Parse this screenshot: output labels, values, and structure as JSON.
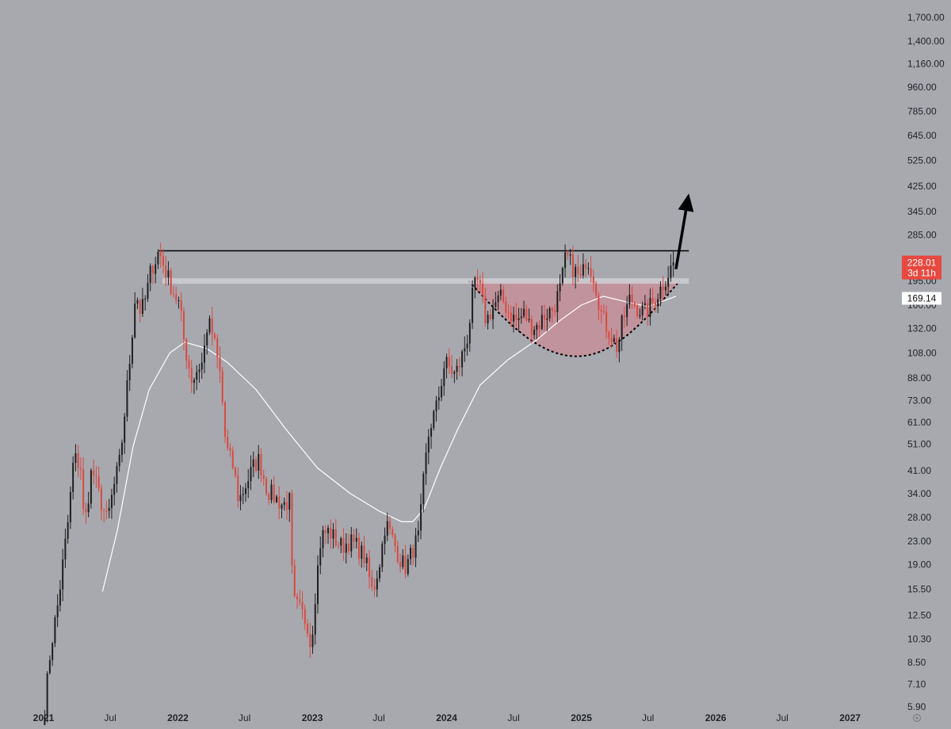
{
  "chart_data": {
    "type": "candlestick",
    "scale": "log",
    "grid": false,
    "ylim": [
      5.9,
      1700.0
    ],
    "xlim": [
      "2021-01-01",
      "2027-03-01"
    ],
    "y_ticks": [
      "1,700.00",
      "1,400.00",
      "1,160.00",
      "960.00",
      "785.00",
      "645.00",
      "525.00",
      "425.00",
      "345.00",
      "285.00",
      "195.00",
      "160.00",
      "132.00",
      "108.00",
      "88.00",
      "73.00",
      "61.00",
      "51.00",
      "41.00",
      "34.00",
      "28.00",
      "23.00",
      "19.00",
      "15.50",
      "12.50",
      "10.30",
      "8.50",
      "7.10",
      "5.90"
    ],
    "y_tick_values": [
      1700,
      1400,
      1160,
      960,
      785,
      645,
      525,
      425,
      345,
      285,
      195,
      160,
      132,
      108,
      88,
      73,
      61,
      51,
      41,
      34,
      28,
      23,
      19,
      15.5,
      12.5,
      10.3,
      8.5,
      7.1,
      5.9
    ],
    "x_ticks": [
      {
        "label": "2021",
        "date": "2021-01-01",
        "year": true
      },
      {
        "label": "Jul",
        "date": "2021-07-01",
        "year": false
      },
      {
        "label": "2022",
        "date": "2022-01-01",
        "year": true
      },
      {
        "label": "Jul",
        "date": "2022-07-01",
        "year": false
      },
      {
        "label": "2023",
        "date": "2023-01-01",
        "year": true
      },
      {
        "label": "Jul",
        "date": "2023-07-01",
        "year": false
      },
      {
        "label": "2024",
        "date": "2024-01-01",
        "year": true
      },
      {
        "label": "Jul",
        "date": "2024-07-01",
        "year": false
      },
      {
        "label": "2025",
        "date": "2025-01-01",
        "year": true
      },
      {
        "label": "Jul",
        "date": "2025-07-01",
        "year": false
      },
      {
        "label": "2026",
        "date": "2026-01-01",
        "year": true
      },
      {
        "label": "Jul",
        "date": "2026-07-01",
        "year": false
      },
      {
        "label": "2027",
        "date": "2027-01-01",
        "year": true
      }
    ],
    "price_path": [
      [
        "2021-01-04",
        5.9
      ],
      [
        "2021-01-20",
        9.5
      ],
      [
        "2021-02-10",
        14
      ],
      [
        "2021-02-24",
        20
      ],
      [
        "2021-03-10",
        28
      ],
      [
        "2021-03-24",
        46
      ],
      [
        "2021-04-14",
        42
      ],
      [
        "2021-04-21",
        25
      ],
      [
        "2021-05-12",
        42
      ],
      [
        "2021-06-02",
        33
      ],
      [
        "2021-06-23",
        27
      ],
      [
        "2021-07-07",
        34
      ],
      [
        "2021-07-28",
        45
      ],
      [
        "2021-08-11",
        70
      ],
      [
        "2021-08-25",
        108
      ],
      [
        "2021-09-08",
        180
      ],
      [
        "2021-09-22",
        150
      ],
      [
        "2021-10-06",
        170
      ],
      [
        "2021-10-20",
        215
      ],
      [
        "2021-11-03",
        235
      ],
      [
        "2021-11-10",
        250
      ],
      [
        "2021-11-24",
        220
      ],
      [
        "2021-12-15",
        185
      ],
      [
        "2022-01-05",
        160
      ],
      [
        "2022-01-19",
        115
      ],
      [
        "2022-02-09",
        85
      ],
      [
        "2022-02-23",
        95
      ],
      [
        "2022-03-09",
        100
      ],
      [
        "2022-03-23",
        140
      ],
      [
        "2022-04-06",
        125
      ],
      [
        "2022-04-27",
        88
      ],
      [
        "2022-05-11",
        50
      ],
      [
        "2022-06-01",
        42
      ],
      [
        "2022-06-15",
        32
      ],
      [
        "2022-07-06",
        37
      ],
      [
        "2022-07-27",
        43
      ],
      [
        "2022-08-10",
        45
      ],
      [
        "2022-08-31",
        35
      ],
      [
        "2022-09-21",
        33
      ],
      [
        "2022-10-12",
        31
      ],
      [
        "2022-11-02",
        32
      ],
      [
        "2022-11-09",
        14
      ],
      [
        "2022-11-30",
        13
      ],
      [
        "2022-12-21",
        11.5
      ],
      [
        "2022-12-28",
        9.5
      ],
      [
        "2023-01-11",
        16
      ],
      [
        "2023-01-25",
        24
      ],
      [
        "2023-02-15",
        25
      ],
      [
        "2023-03-08",
        23
      ],
      [
        "2023-03-22",
        22
      ],
      [
        "2023-04-12",
        23
      ],
      [
        "2023-05-03",
        22
      ],
      [
        "2023-05-24",
        20
      ],
      [
        "2023-06-14",
        15
      ],
      [
        "2023-07-05",
        20
      ],
      [
        "2023-07-19",
        27
      ],
      [
        "2023-08-09",
        23
      ],
      [
        "2023-08-30",
        19.5
      ],
      [
        "2023-09-13",
        18.5
      ],
      [
        "2023-10-04",
        22
      ],
      [
        "2023-10-18",
        24
      ],
      [
        "2023-11-01",
        40
      ],
      [
        "2023-11-15",
        58
      ],
      [
        "2023-12-06",
        70
      ],
      [
        "2023-12-27",
        100
      ],
      [
        "2024-01-10",
        95
      ],
      [
        "2024-01-24",
        90
      ],
      [
        "2024-02-07",
        100
      ],
      [
        "2024-02-28",
        125
      ],
      [
        "2024-03-13",
        180
      ],
      [
        "2024-03-27",
        195
      ],
      [
        "2024-04-17",
        140
      ],
      [
        "2024-05-08",
        160
      ],
      [
        "2024-05-29",
        170
      ],
      [
        "2024-06-19",
        150
      ],
      [
        "2024-07-10",
        140
      ],
      [
        "2024-07-31",
        150
      ],
      [
        "2024-08-14",
        135
      ],
      [
        "2024-09-04",
        135
      ],
      [
        "2024-09-25",
        148
      ],
      [
        "2024-10-16",
        155
      ],
      [
        "2024-11-06",
        185
      ],
      [
        "2024-11-20",
        240
      ],
      [
        "2024-12-11",
        215
      ],
      [
        "2025-01-01",
        195
      ],
      [
        "2025-01-15",
        240
      ],
      [
        "2025-02-05",
        200
      ],
      [
        "2025-02-26",
        145
      ],
      [
        "2025-03-19",
        128
      ],
      [
        "2025-04-09",
        112
      ],
      [
        "2025-04-23",
        140
      ],
      [
        "2025-05-14",
        170
      ],
      [
        "2025-06-04",
        155
      ],
      [
        "2025-06-25",
        150
      ],
      [
        "2025-07-16",
        165
      ],
      [
        "2025-08-06",
        185
      ],
      [
        "2025-08-27",
        210
      ],
      [
        "2025-09-10",
        228.01
      ]
    ],
    "moving_average": [
      [
        "2021-06-10",
        15.2
      ],
      [
        "2021-07-20",
        25
      ],
      [
        "2021-09-01",
        50
      ],
      [
        "2021-10-15",
        80
      ],
      [
        "2021-12-10",
        108
      ],
      [
        "2022-01-20",
        118
      ],
      [
        "2022-03-20",
        112
      ],
      [
        "2022-05-15",
        100
      ],
      [
        "2022-08-01",
        80
      ],
      [
        "2022-10-20",
        58
      ],
      [
        "2023-01-15",
        42
      ],
      [
        "2023-04-15",
        34
      ],
      [
        "2023-07-01",
        29.5
      ],
      [
        "2023-09-01",
        27
      ],
      [
        "2023-10-01",
        27
      ],
      [
        "2023-11-01",
        30
      ],
      [
        "2023-12-15",
        42
      ],
      [
        "2024-02-01",
        58
      ],
      [
        "2024-04-01",
        83
      ],
      [
        "2024-06-15",
        102
      ],
      [
        "2024-09-01",
        120
      ],
      [
        "2024-11-01",
        140
      ],
      [
        "2025-01-01",
        160
      ],
      [
        "2025-03-01",
        172
      ],
      [
        "2025-05-15",
        163
      ],
      [
        "2025-07-01",
        158
      ],
      [
        "2025-09-15",
        172
      ]
    ],
    "horizontal_lines": [
      {
        "name": "resistance",
        "value": 250,
        "from": "2021-11-10",
        "to": "2025-10-20",
        "color": "#000000"
      },
      {
        "name": "rim",
        "value": 195,
        "from": "2021-11-20",
        "to": "2025-10-20",
        "color": "#cfd1d6"
      }
    ],
    "cup_pattern": {
      "from": "2024-03-01",
      "to": "2025-09-25",
      "rim_value": 195,
      "bottom_value": 105,
      "bottom_date": "2024-12-20",
      "fill": "#c98c95",
      "stroke": "#000000"
    },
    "arrow": {
      "from_date": "2025-09-15",
      "from_value": 215,
      "to_date": "2025-10-20",
      "to_value": 400,
      "color": "#000000"
    },
    "price_labels": [
      {
        "text": "228.01",
        "sub": "3d 11h",
        "value": 228.01,
        "color": "#e8483f"
      },
      {
        "text": "169.14",
        "value": 169.14,
        "color": "#ffffff"
      }
    ],
    "colors": {
      "background": "#a7a9af",
      "up": "#1f1f1f",
      "down": "#d94a42",
      "ma": "#ffffff",
      "cup_fill": "#c98c95"
    }
  }
}
